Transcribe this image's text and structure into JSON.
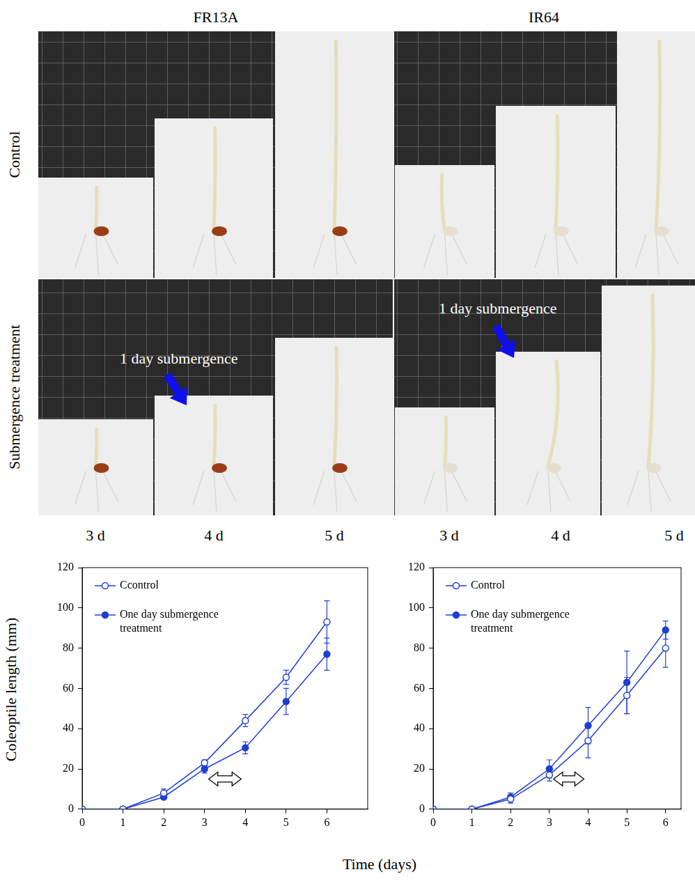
{
  "photos": {
    "columns": [
      "FR13A",
      "IR64"
    ],
    "rows": [
      "Control",
      "Submergence treatment"
    ],
    "day_labels": [
      "3 d",
      "4 d",
      "5 d"
    ],
    "annotations": [
      "1 day submergence",
      "1 day submergence"
    ]
  },
  "axis_titles": {
    "x": "Time (days)",
    "y": "Coleoptile length (mm)"
  },
  "chart_data": [
    {
      "type": "line",
      "x": [
        0,
        1,
        2,
        3,
        4,
        5,
        6
      ],
      "series": [
        {
          "name": "Ccontrol",
          "color": "#1f3fd1",
          "marker": "open_circle",
          "values": [
            0,
            0,
            8,
            23,
            44,
            65.5,
            93
          ],
          "errors": [
            0,
            0,
            2,
            1.5,
            3,
            3.5,
            10.5
          ]
        },
        {
          "name": "One day submergence treatment",
          "color": "#1f3fd1",
          "marker": "circle",
          "values": [
            0,
            0,
            6,
            20,
            30.5,
            53.5,
            77
          ],
          "errors": [
            0,
            0,
            1,
            2,
            3,
            6.5,
            8
          ]
        }
      ],
      "xlim": [
        0,
        7
      ],
      "xticks": [
        0,
        1,
        2,
        3,
        4,
        5,
        6
      ],
      "ylim": [
        0,
        120
      ],
      "yticks": [
        0,
        20,
        40,
        60,
        80,
        100,
        120
      ],
      "grid": false,
      "legend": "upper left",
      "submergence_period": [
        3,
        4
      ]
    },
    {
      "type": "line",
      "x": [
        0,
        1,
        2,
        3,
        4,
        5,
        6
      ],
      "series": [
        {
          "name": "Control",
          "color": "#1f3fd1",
          "marker": "open_circle",
          "values": [
            0,
            0,
            5,
            17,
            34,
            56.5,
            80
          ],
          "errors": [
            0,
            0,
            2,
            3,
            8.5,
            9,
            9.5
          ]
        },
        {
          "name": "One day submergence treatment",
          "color": "#1f3fd1",
          "marker": "circle",
          "values": [
            0,
            0,
            6,
            20,
            41.5,
            63,
            89
          ],
          "errors": [
            0,
            0,
            2,
            4.5,
            9,
            15.5,
            4.5
          ]
        }
      ],
      "xlim": [
        0,
        6.4
      ],
      "xticks": [
        0,
        1,
        2,
        3,
        4,
        5,
        6
      ],
      "ylim": [
        0,
        120
      ],
      "yticks": [
        0,
        20,
        40,
        60,
        80,
        100,
        120
      ],
      "grid": false,
      "legend": "upper left",
      "submergence_period": [
        3,
        4
      ]
    }
  ]
}
